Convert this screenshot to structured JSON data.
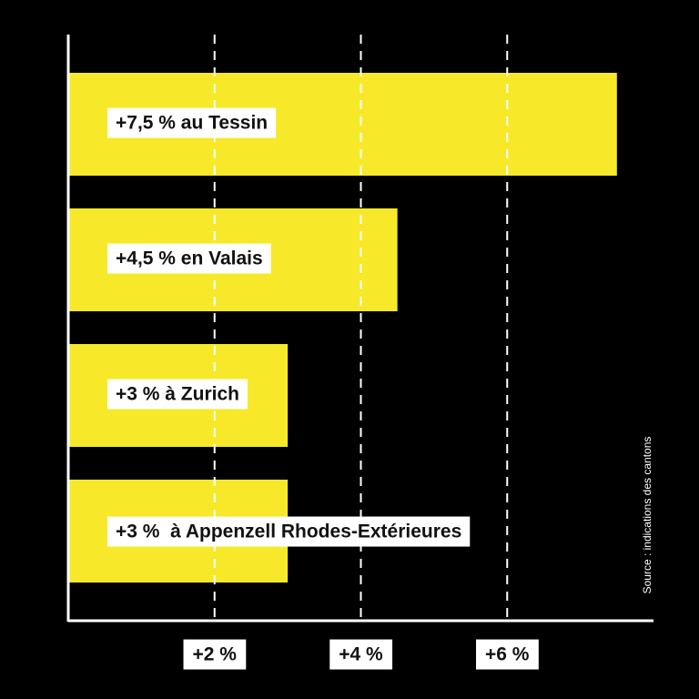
{
  "chart_data": {
    "type": "bar",
    "orientation": "horizontal",
    "categories": [
      "+7,5 % au Tessin",
      "+4,5 % en Valais",
      "+3 % à Zurich",
      "+3 %  à Appenzell Rhodes-Extérieures"
    ],
    "values": [
      7.5,
      4.5,
      3,
      3
    ],
    "color": "#f7e92a",
    "xlim": [
      0,
      8
    ],
    "xticks": [
      {
        "value": 2,
        "label": "+2 %"
      },
      {
        "value": 4,
        "label": "+4 %"
      },
      {
        "value": 6,
        "label": "+6 %"
      }
    ],
    "grid": true,
    "source": "Source : indications des cantons"
  }
}
